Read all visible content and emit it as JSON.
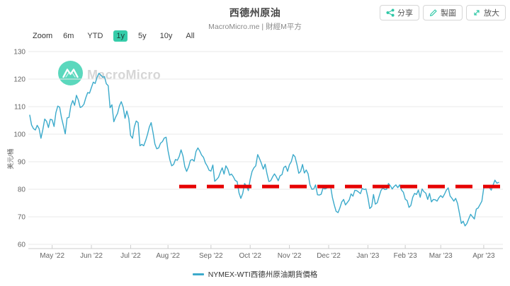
{
  "header": {
    "title": "西德州原油",
    "subtitle": "MacroMicro.me | 財經M平方",
    "buttons": [
      {
        "label": "分享",
        "icon": "share-icon"
      },
      {
        "label": "製圖",
        "icon": "pencil-icon"
      },
      {
        "label": "放大",
        "icon": "expand-icon"
      }
    ]
  },
  "toolbar": {
    "zoom_label": "Zoom",
    "ranges": [
      "6m",
      "YTD",
      "1y",
      "5y",
      "10y",
      "All"
    ],
    "selected": "1y"
  },
  "watermark": {
    "brand": "MacroMicro"
  },
  "colors": {
    "accent": "#2EC7A6",
    "series_line": "#3BAACB",
    "reference_red": "#E60000"
  },
  "chart_data": {
    "type": "line",
    "title": "西德州原油",
    "xlabel": "",
    "ylabel": "美元/桶",
    "ylim": [
      60,
      130
    ],
    "ytick_step": 10,
    "grid": true,
    "legend_position": "bottom",
    "x_labels": [
      "May '22",
      "Jun '22",
      "Jul '22",
      "Aug '22",
      "Sep '22",
      "Oct '22",
      "Nov '22",
      "Dec '22",
      "Jan '23",
      "Feb '23",
      "Mar '23",
      "Apr '23"
    ],
    "x_tick_indices": [
      12,
      33,
      54,
      74,
      97,
      118,
      139,
      160,
      181,
      201,
      220,
      243
    ],
    "series": [
      {
        "name": "NYMEX-WTI西德州原油期貨價格",
        "color": "#3BAACB",
        "values": [
          106.9,
          103.3,
          102.0,
          101.5,
          103.2,
          102.0,
          98.5,
          101.7,
          105.5,
          104.7,
          102.4,
          105.4,
          105.2,
          102.8,
          107.8,
          110.2,
          109.8,
          106.0,
          103.1,
          100.1,
          105.9,
          106.1,
          110.3,
          112.2,
          110.5,
          114.1,
          112.4,
          109.7,
          110.0,
          110.9,
          113.2,
          115.1,
          114.9,
          116.9,
          118.9,
          118.4,
          120.5,
          122.1,
          121.5,
          120.7,
          120.9,
          118.3,
          117.6,
          109.6,
          110.7,
          104.5,
          106.2,
          107.6,
          110.3,
          111.8,
          109.8,
          105.8,
          108.4,
          105.8,
          99.5,
          98.5,
          102.7,
          104.8,
          104.2,
          95.8,
          96.3,
          95.8,
          97.6,
          99.9,
          102.6,
          104.2,
          100.5,
          96.4,
          94.7,
          95.0,
          96.7,
          97.3,
          98.6,
          98.9,
          94.0,
          90.7,
          88.5,
          89.0,
          90.8,
          90.5,
          91.9,
          94.3,
          92.1,
          88.2,
          86.5,
          88.1,
          90.5,
          90.8,
          90.2,
          93.7,
          95.0,
          93.9,
          92.4,
          91.6,
          89.6,
          88.4,
          86.9,
          86.6,
          88.8,
          82.9,
          83.5,
          84.3,
          86.1,
          87.8,
          85.5,
          88.5,
          87.3,
          85.1,
          85.5,
          84.5,
          83.2,
          82.8,
          78.7,
          76.7,
          78.5,
          82.1,
          81.2,
          79.5,
          83.6,
          86.5,
          87.8,
          88.5,
          92.6,
          91.1,
          89.4,
          87.3,
          89.1,
          85.6,
          82.8,
          83.1,
          84.5,
          85.6,
          84.5,
          83.1,
          84.9,
          85.3,
          87.9,
          88.4,
          86.5,
          88.9,
          90.0,
          92.6,
          91.8,
          89.0,
          85.8,
          86.5,
          89.0,
          85.9,
          87.0,
          85.6,
          81.6,
          80.0,
          80.1,
          81.6,
          78.0,
          77.9,
          78.2,
          80.5,
          80.1,
          80.4,
          81.0,
          81.2,
          77.0,
          74.3,
          72.0,
          71.5,
          73.2,
          75.4,
          76.3,
          74.3,
          75.2,
          76.1,
          78.3,
          77.5,
          79.6,
          79.5,
          79.0,
          78.4,
          80.3,
          79.9,
          80.1,
          77.0,
          73.0,
          73.7,
          78.1,
          74.6,
          75.1,
          77.4,
          79.5,
          80.5,
          79.9,
          80.0,
          82.1,
          81.3,
          80.1,
          81.0,
          81.6,
          80.6,
          81.6,
          79.7,
          78.9,
          76.4,
          75.9,
          73.4,
          74.1,
          77.1,
          78.5,
          78.1,
          79.7,
          77.1,
          80.1,
          79.1,
          78.6,
          76.3,
          78.5,
          75.4,
          76.3,
          76.2,
          75.7,
          76.9,
          77.7,
          77.0,
          78.2,
          79.7,
          80.5,
          77.6,
          76.7,
          75.7,
          76.7,
          74.8,
          71.3,
          67.6,
          68.4,
          66.7,
          67.6,
          69.3,
          70.9,
          70.0,
          69.2,
          72.8,
          73.2,
          74.4,
          75.7,
          80.4,
          80.7,
          80.6,
          80.7,
          79.7,
          81.5,
          83.3,
          82.2,
          82.5
        ]
      }
    ],
    "reference_line": {
      "value": 81,
      "color": "#E60000",
      "style": "dashed"
    }
  }
}
